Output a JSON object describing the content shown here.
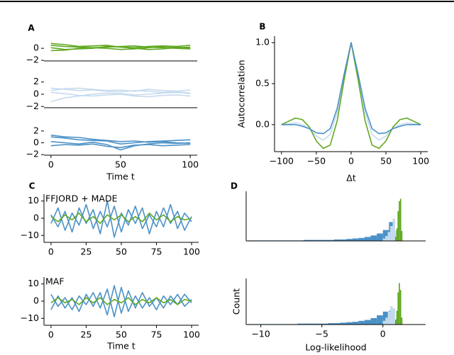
{
  "chart_data": [
    {
      "type": "line",
      "panel": "A",
      "xlim": [
        -5,
        105
      ],
      "ylim": [
        -2.1,
        1.9
      ],
      "yticks": [
        {
          "value": -2,
          "label": "−2"
        },
        0
      ],
      "x": [
        0,
        10,
        20,
        30,
        40,
        50,
        60,
        70,
        80,
        90,
        100
      ],
      "series": [
        {
          "color": "#5fa81f",
          "values": [
            0.5,
            0.3,
            0.2,
            0.1,
            0.2,
            0.3,
            0.4,
            0.2,
            0.1,
            0.0,
            -0.1
          ]
        },
        {
          "color": "#5fa81f",
          "values": [
            0.1,
            -0.2,
            -0.1,
            0.0,
            0.3,
            0.2,
            0.0,
            -0.2,
            -0.1,
            0.1,
            0.2
          ]
        },
        {
          "color": "#5fa81f",
          "values": [
            -0.4,
            -0.3,
            0.0,
            0.1,
            0.0,
            -0.2,
            -0.1,
            0.1,
            0.3,
            0.2,
            0.0
          ]
        },
        {
          "color": "#5fa81f",
          "values": [
            0.8,
            0.6,
            0.3,
            0.4,
            0.5,
            0.2,
            0.1,
            0.3,
            0.4,
            0.3,
            0.5
          ]
        }
      ]
    },
    {
      "type": "line",
      "xlim": [
        -5,
        105
      ],
      "ylim": [
        -2.2,
        2.2
      ],
      "yticks": [
        {
          "value": -2,
          "label": "−2"
        },
        0,
        2
      ],
      "x": [
        0,
        10,
        20,
        30,
        40,
        50,
        60,
        70,
        80,
        90,
        100
      ],
      "series": [
        {
          "color": "#c6dbef",
          "values": [
            1.0,
            0.8,
            0.6,
            0.7,
            0.5,
            0.4,
            0.6,
            0.5,
            0.3,
            0.4,
            0.2
          ]
        },
        {
          "color": "#c6dbef",
          "values": [
            -1.2,
            -0.6,
            -0.3,
            0.0,
            0.2,
            0.1,
            -0.1,
            0.0,
            0.2,
            0.3,
            0.1
          ]
        },
        {
          "color": "#c6dbef",
          "values": [
            0.3,
            0.1,
            -0.2,
            -0.3,
            -0.1,
            0.0,
            -0.3,
            -0.4,
            -0.2,
            -0.1,
            -0.3
          ]
        },
        {
          "color": "#c6dbef",
          "values": [
            0.6,
            0.9,
            1.0,
            0.8,
            0.6,
            0.7,
            0.5,
            0.8,
            0.6,
            0.5,
            0.7
          ]
        }
      ]
    },
    {
      "type": "line",
      "xlim": [
        -5,
        105
      ],
      "ylim": [
        -2.1,
        2.1
      ],
      "x_label": "Time t",
      "yticks": [
        {
          "value": -2,
          "label": "−2"
        },
        0,
        2
      ],
      "xticks": [
        0,
        50,
        100
      ],
      "x": [
        0,
        10,
        20,
        30,
        40,
        50,
        60,
        70,
        80,
        90,
        100
      ],
      "series": [
        {
          "color": "#4b91c7",
          "values": [
            1.0,
            0.8,
            0.5,
            0.4,
            0.3,
            -0.2,
            0.0,
            0.2,
            0.3,
            0.4,
            0.5
          ]
        },
        {
          "color": "#4b91c7",
          "values": [
            0.2,
            0.0,
            -0.2,
            0.1,
            -0.3,
            -1.2,
            -0.5,
            -0.2,
            0.0,
            -0.1,
            0.0
          ]
        },
        {
          "color": "#4b91c7",
          "values": [
            -0.5,
            -0.3,
            -0.4,
            -0.2,
            -0.6,
            -0.8,
            -0.4,
            -0.3,
            -0.5,
            -0.4,
            -0.3
          ]
        },
        {
          "color": "#4b91c7",
          "values": [
            1.3,
            1.0,
            0.9,
            0.6,
            0.4,
            0.2,
            0.3,
            0.1,
            0.2,
            0.0,
            -0.1
          ]
        }
      ]
    },
    {
      "type": "line",
      "panel": "B",
      "xlim": [
        -110,
        110
      ],
      "ylim": [
        -0.33,
        1.08
      ],
      "x_label": "Δt",
      "y_label": "Autocorrelation",
      "xticks": [
        {
          "value": -100,
          "label": "−100"
        },
        {
          "value": -50,
          "label": "−50"
        },
        0,
        50,
        100
      ],
      "yticks": [
        {
          "value": 0,
          "label": "0.0"
        },
        {
          "value": 0.5,
          "label": "0.5"
        },
        {
          "value": 1,
          "label": "1.0"
        }
      ],
      "x": [
        -100,
        -90,
        -80,
        -70,
        -60,
        -50,
        -40,
        -30,
        -20,
        -10,
        0,
        10,
        20,
        30,
        40,
        50,
        60,
        70,
        80,
        90,
        100
      ],
      "series": [
        {
          "color": "#c6dbef",
          "values": [
            0.0,
            0.01,
            0.02,
            0.0,
            -0.05,
            -0.14,
            -0.19,
            -0.12,
            0.15,
            0.6,
            1.0,
            0.6,
            0.15,
            -0.12,
            -0.19,
            -0.14,
            -0.05,
            0.0,
            0.02,
            0.01,
            0.0
          ]
        },
        {
          "color": "#5fa81f",
          "values": [
            0.0,
            0.04,
            0.08,
            0.06,
            -0.03,
            -0.2,
            -0.29,
            -0.25,
            0.05,
            0.55,
            1.0,
            0.55,
            0.05,
            -0.25,
            -0.29,
            -0.2,
            -0.03,
            0.06,
            0.08,
            0.04,
            0.0
          ]
        },
        {
          "color": "#4b91c7",
          "values": [
            0.0,
            0.0,
            0.0,
            -0.02,
            -0.05,
            -0.1,
            -0.11,
            -0.05,
            0.2,
            0.62,
            1.0,
            0.62,
            0.2,
            -0.05,
            -0.11,
            -0.1,
            -0.05,
            -0.02,
            0.0,
            0.0,
            0.0
          ]
        }
      ]
    },
    {
      "type": "line",
      "panel": "C",
      "annotation": "FFJORD + MADE",
      "xlim": [
        -5,
        105
      ],
      "ylim": [
        -14,
        14
      ],
      "xticks": [
        0,
        25,
        50,
        75,
        100
      ],
      "yticks": [
        {
          "value": -10,
          "label": "−10"
        },
        0,
        10
      ],
      "x": [
        0,
        5,
        10,
        15,
        20,
        25,
        30,
        35,
        40,
        45,
        50,
        55,
        60,
        65,
        70,
        75,
        80,
        85,
        90,
        95,
        100
      ],
      "series": [
        {
          "color": "#4b91c7",
          "values": [
            2,
            -5,
            4,
            -8,
            6,
            -3,
            5,
            -9,
            10,
            -11,
            3,
            -4,
            7,
            -6,
            2,
            -5,
            6,
            -3,
            4,
            -7,
            1
          ]
        },
        {
          "color": "#4b91c7",
          "values": [
            -3,
            6,
            -7,
            3,
            -4,
            8,
            -6,
            4,
            -5,
            7,
            -8,
            5,
            -3,
            6,
            -9,
            4,
            -5,
            8,
            -6,
            3,
            -2
          ]
        },
        {
          "color": "#5fa81f",
          "values": [
            1,
            -2,
            2,
            -1,
            3,
            -2,
            1,
            -3,
            2,
            -1,
            2,
            -2,
            1,
            -2,
            3,
            -1,
            2,
            -2,
            1,
            -1,
            0
          ]
        }
      ]
    },
    {
      "type": "line",
      "annotation": "MAF",
      "x_label": "Time t",
      "xlim": [
        -5,
        105
      ],
      "ylim": [
        -14,
        14
      ],
      "xticks": [
        0,
        25,
        50,
        75,
        100
      ],
      "yticks": [
        {
          "value": -10,
          "label": "−10"
        },
        0,
        10
      ],
      "x": [
        0,
        5,
        10,
        15,
        20,
        25,
        30,
        35,
        40,
        45,
        50,
        55,
        60,
        65,
        70,
        75,
        80,
        85,
        90,
        95,
        100
      ],
      "series": [
        {
          "color": "#4b91c7",
          "values": [
            -5,
            3,
            -4,
            2,
            -6,
            4,
            -3,
            5,
            -8,
            9,
            -7,
            6,
            -4,
            5,
            -3,
            2,
            -4,
            3,
            -2,
            4,
            -1
          ]
        },
        {
          "color": "#4b91c7",
          "values": [
            4,
            -3,
            2,
            -5,
            3,
            -2,
            5,
            -4,
            7,
            -9,
            8,
            -6,
            3,
            -4,
            2,
            -5,
            3,
            -2,
            4,
            -3,
            1
          ]
        },
        {
          "color": "#5fa81f",
          "values": [
            -1,
            2,
            -1,
            1,
            -2,
            2,
            -1,
            2,
            -2,
            1,
            -1,
            2,
            -2,
            1,
            -1,
            2,
            -1,
            1,
            -2,
            1,
            0
          ]
        }
      ]
    },
    {
      "type": "histogram",
      "panel": "D",
      "xlim": [
        -11.2,
        3.5
      ],
      "ylim": [
        0,
        100
      ],
      "series": [
        {
          "color": "#4b91c7",
          "bins": [
            -11,
            -10.5,
            -10,
            -9.5,
            -9,
            -8.5,
            -8,
            -7.5,
            -7,
            -6.5,
            -6,
            -5.5,
            -5,
            -4.5,
            -4,
            -3.5,
            -3,
            -2.5,
            -2,
            -1.5,
            -1,
            -0.5,
            0,
            0.5,
            1
          ],
          "values": [
            1,
            1,
            1,
            1,
            1,
            1,
            1,
            1,
            1,
            2,
            2,
            2,
            2,
            2,
            3,
            3,
            4,
            5,
            6,
            8,
            11,
            15,
            22,
            38
          ]
        },
        {
          "color": "#c6dbef",
          "bins": [
            0,
            0.2,
            0.4,
            0.6,
            0.8,
            1.0,
            1.2
          ],
          "values": [
            5,
            10,
            18,
            30,
            45,
            20
          ]
        },
        {
          "color": "#5fa81f",
          "bins": [
            1.0,
            1.1,
            1.2,
            1.3,
            1.4,
            1.5,
            1.6
          ],
          "values": [
            8,
            25,
            60,
            80,
            85,
            20
          ]
        }
      ]
    },
    {
      "type": "histogram",
      "x_label": "Log-likelihood",
      "y_label": "Count",
      "xlim": [
        -11.2,
        3.5
      ],
      "ylim": [
        0,
        100
      ],
      "xticks": [
        {
          "value": -10,
          "label": "−10"
        },
        {
          "value": -5,
          "label": "−5"
        },
        0
      ],
      "series": [
        {
          "color": "#4b91c7",
          "bins": [
            -11,
            -10.5,
            -10,
            -9.5,
            -9,
            -8.5,
            -8,
            -7.5,
            -7,
            -6.5,
            -6,
            -5.5,
            -5,
            -4.5,
            -4,
            -3.5,
            -3,
            -2.5,
            -2,
            -1.5,
            -1,
            -0.5,
            0,
            0.5,
            1
          ],
          "values": [
            1,
            1,
            1,
            1,
            1,
            1,
            1,
            1,
            2,
            2,
            2,
            2,
            2,
            3,
            3,
            4,
            5,
            6,
            8,
            10,
            14,
            20,
            28,
            30
          ]
        },
        {
          "color": "#c6dbef",
          "bins": [
            0,
            0.2,
            0.4,
            0.6,
            0.8,
            1.0,
            1.2
          ],
          "values": [
            8,
            15,
            28,
            40,
            35,
            12
          ]
        },
        {
          "color": "#5fa81f",
          "bins": [
            1.0,
            1.1,
            1.2,
            1.3,
            1.4,
            1.5,
            1.6
          ],
          "values": [
            10,
            30,
            70,
            90,
            75,
            15
          ]
        }
      ]
    }
  ]
}
